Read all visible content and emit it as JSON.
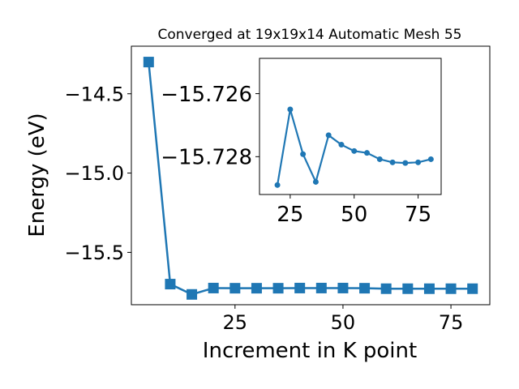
{
  "chart_data": [
    {
      "type": "line",
      "title": "Converged at 19x19x14 Automatic Mesh 55",
      "xlabel": "Increment in K point",
      "ylabel": "Energy (eV)",
      "xlim": [
        1,
        84
      ],
      "ylim": [
        -15.83,
        -14.2
      ],
      "xticks": [
        25,
        50,
        75
      ],
      "xtick_labels": [
        "25",
        "50",
        "75"
      ],
      "yticks": [
        -14.5,
        -15.0,
        -15.5
      ],
      "ytick_labels": [
        "−14.5",
        "−15.0",
        "−15.5"
      ],
      "marker": "square",
      "color": "#1f77b4",
      "grid": false,
      "series": [
        {
          "x": [
            5,
            10,
            15,
            20,
            25,
            30,
            35,
            40,
            45,
            50,
            55,
            60,
            65,
            70,
            75,
            80
          ],
          "y": [
            -14.3,
            -15.7,
            -15.765,
            -15.725,
            -15.726,
            -15.726,
            -15.726,
            -15.725,
            -15.725,
            -15.725,
            -15.726,
            -15.729,
            -15.729,
            -15.729,
            -15.729,
            -15.729
          ]
        }
      ]
    },
    {
      "type": "line",
      "role": "inset",
      "xlim": [
        13,
        84
      ],
      "ylim": [
        -15.7292,
        -15.72488
      ],
      "xticks": [
        25,
        50,
        75
      ],
      "xtick_labels": [
        "25",
        "50",
        "75"
      ],
      "yticks": [
        -15.728,
        -15.726
      ],
      "ytick_labels": [
        "−15.728",
        "−15.726"
      ],
      "marker": "circle",
      "color": "#1f77b4",
      "grid": false,
      "series": [
        {
          "x": [
            20,
            25,
            30,
            35,
            40,
            45,
            50,
            55,
            60,
            65,
            70,
            75,
            80
          ],
          "y": [
            -15.7289,
            -15.7265,
            -15.72792,
            -15.7288,
            -15.72732,
            -15.72762,
            -15.72782,
            -15.72788,
            -15.72808,
            -15.72818,
            -15.7282,
            -15.72818,
            -15.72808
          ]
        }
      ]
    }
  ]
}
